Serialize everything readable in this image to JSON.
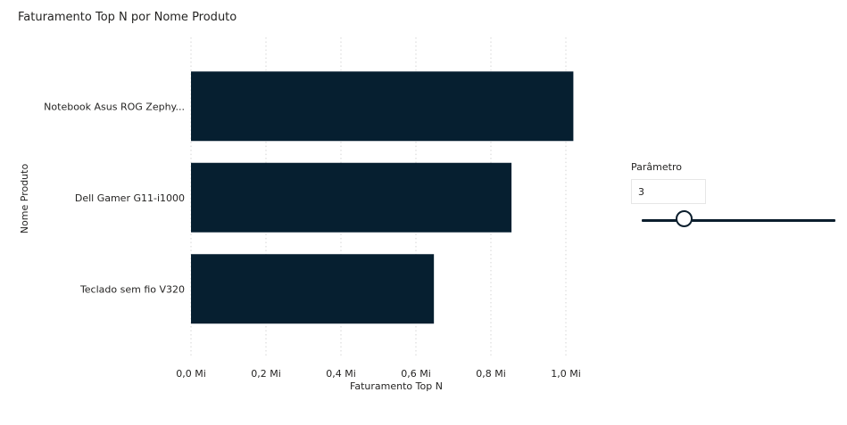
{
  "chart_data": {
    "type": "bar",
    "orientation": "horizontal",
    "title": "Faturamento Top N por Nome Produto",
    "xlabel": "Faturamento Top N",
    "ylabel": "Nome Produto",
    "categories": [
      "Notebook Asus ROG Zephy...",
      "Dell Gamer G11-i1000",
      "Teclado sem fio V320"
    ],
    "values": [
      1020000,
      855000,
      648000
    ],
    "xlim": [
      0,
      1000000
    ],
    "xticks": [
      0,
      200000,
      400000,
      600000,
      800000,
      1000000
    ],
    "xtick_labels": [
      "0,0 Mi",
      "0,2 Mi",
      "0,4 Mi",
      "0,6 Mi",
      "0,8 Mi",
      "1,0 Mi"
    ],
    "grid": "vertical-dotted",
    "bar_color": "#061f30",
    "grid_color": "#d6d6d6"
  },
  "slicer": {
    "label": "Parâmetro",
    "value": "3",
    "min": 1,
    "max": 10,
    "accent": "#0b1e2d"
  }
}
